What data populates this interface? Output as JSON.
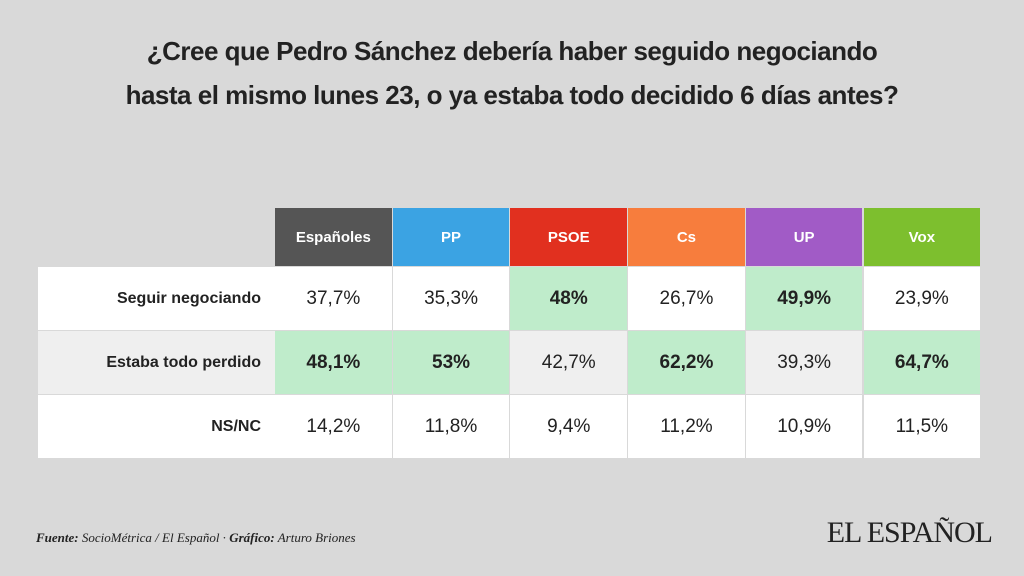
{
  "title": [
    "¿Cree que Pedro Sánchez debería haber seguido negociando",
    "hasta el mismo lunes 23, o ya estaba todo decidido 6 días antes?"
  ],
  "table": {
    "columns": [
      {
        "label": "Españoles",
        "color": "#555555"
      },
      {
        "label": "PP",
        "color": "#3ba3e3"
      },
      {
        "label": "PSOE",
        "color": "#e1301f"
      },
      {
        "label": "Cs",
        "color": "#f77d3d"
      },
      {
        "label": "UP",
        "color": "#a15bc6"
      },
      {
        "label": "Vox",
        "color": "#7dbf2e"
      }
    ],
    "rows": [
      {
        "label": "Seguir negociando",
        "cells": [
          {
            "text": "37,7%",
            "highlight": false
          },
          {
            "text": "35,3%",
            "highlight": false
          },
          {
            "text": "48%",
            "highlight": true
          },
          {
            "text": "26,7%",
            "highlight": false
          },
          {
            "text": "49,9%",
            "highlight": true
          },
          {
            "text": "23,9%",
            "highlight": false
          }
        ]
      },
      {
        "label": "Estaba todo perdido",
        "cells": [
          {
            "text": "48,1%",
            "highlight": true
          },
          {
            "text": "53%",
            "highlight": true
          },
          {
            "text": "42,7%",
            "highlight": false
          },
          {
            "text": "62,2%",
            "highlight": true
          },
          {
            "text": "39,3%",
            "highlight": false
          },
          {
            "text": "64,7%",
            "highlight": true
          }
        ]
      },
      {
        "label": "NS/NC",
        "cells": [
          {
            "text": "14,2%",
            "highlight": false
          },
          {
            "text": "11,8%",
            "highlight": false
          },
          {
            "text": "9,4%",
            "highlight": false
          },
          {
            "text": "11,2%",
            "highlight": false
          },
          {
            "text": "10,9%",
            "highlight": false
          },
          {
            "text": "11,5%",
            "highlight": false
          }
        ]
      }
    ]
  },
  "footer": {
    "source_label": "Fuente:",
    "source": "SocioMétrica / El Español ·",
    "credit_label": "Gráfico:",
    "credit": "Arturo Briones",
    "logo": "EL ESPAÑOL"
  }
}
